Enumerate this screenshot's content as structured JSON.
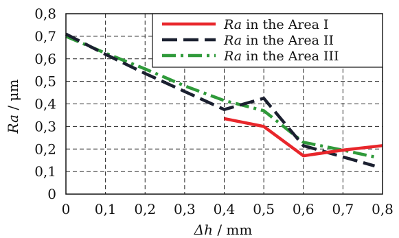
{
  "chart_data": {
    "type": "line",
    "xlabel_symbol": "Δh",
    "xlabel_unit": " / mm",
    "ylabel_symbol": "Ra",
    "ylabel_unit": " / μm",
    "xlim": [
      0,
      0.8
    ],
    "ylim": [
      0,
      0.8
    ],
    "x_ticks": [
      "0",
      "0,1",
      "0,2",
      "0,3",
      "0,4",
      "0,5",
      "0,6",
      "0,7",
      "0,8"
    ],
    "y_ticks": [
      "0",
      "0,1",
      "0,2",
      "0,3",
      "0,4",
      "0,5",
      "0,6",
      "0,7",
      "0,8"
    ],
    "grid": true,
    "legend_position": "top-right",
    "series": [
      {
        "name_symbol": "Ra",
        "name_rest": " in the Area I",
        "color": "#e8262b",
        "style": "solid",
        "x": [
          0.4,
          0.5,
          0.6,
          0.7,
          0.8
        ],
        "y": [
          0.335,
          0.3,
          0.17,
          0.195,
          0.215
        ]
      },
      {
        "name_symbol": "Ra",
        "name_rest": " in the Area II",
        "color": "#1b2030",
        "style": "dashed",
        "x": [
          0,
          0.1,
          0.2,
          0.3,
          0.4,
          0.5,
          0.6,
          0.7,
          0.78
        ],
        "y": [
          0.71,
          0.62,
          0.535,
          0.455,
          0.375,
          0.425,
          0.215,
          0.165,
          0.125
        ]
      },
      {
        "name_symbol": "Ra",
        "name_rest": " in the Area III",
        "color": "#2f9a3a",
        "style": "dashdot",
        "x": [
          0,
          0.1,
          0.2,
          0.3,
          0.4,
          0.5,
          0.6,
          0.7,
          0.78
        ],
        "y": [
          0.7,
          0.625,
          0.555,
          0.48,
          0.415,
          0.37,
          0.23,
          0.195,
          0.165
        ]
      }
    ]
  }
}
